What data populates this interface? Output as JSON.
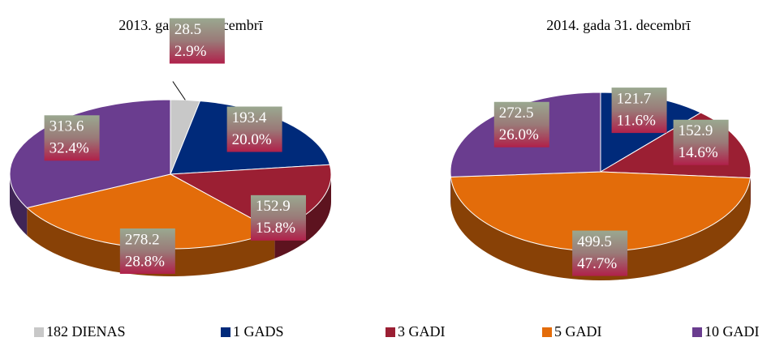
{
  "chart_data": [
    {
      "type": "pie",
      "title": "2013. gada 31. decembrī",
      "categories": [
        "182 DIENAS",
        "1 GADS",
        "3 GADI",
        "5 GADI",
        "10 GADI"
      ],
      "colors": [
        "#c8c8c8",
        "#002a7a",
        "#9b1f33",
        "#e36c0a",
        "#6a3d8f"
      ],
      "values": [
        28.5,
        193.4,
        152.9,
        278.2,
        313.6
      ],
      "percentages": [
        2.9,
        20.0,
        15.8,
        28.8,
        32.4
      ],
      "percentage_labels": [
        "2.9%",
        "20.0%",
        "15.8%",
        "28.8%",
        "32.4%"
      ]
    },
    {
      "type": "pie",
      "title": "2014. gada 31. decembrī",
      "categories": [
        "182 DIENAS",
        "1 GADS",
        "3 GADI",
        "5 GADI",
        "10 GADI"
      ],
      "colors": [
        "#c8c8c8",
        "#002a7a",
        "#9b1f33",
        "#e36c0a",
        "#6a3d8f"
      ],
      "values": [
        null,
        121.7,
        152.9,
        499.5,
        272.5
      ],
      "percentages": [
        null,
        11.6,
        14.6,
        47.7,
        26.0
      ],
      "percentage_labels": [
        null,
        "11.6%",
        "14.6%",
        "47.7%",
        "26.0%"
      ]
    }
  ]
}
